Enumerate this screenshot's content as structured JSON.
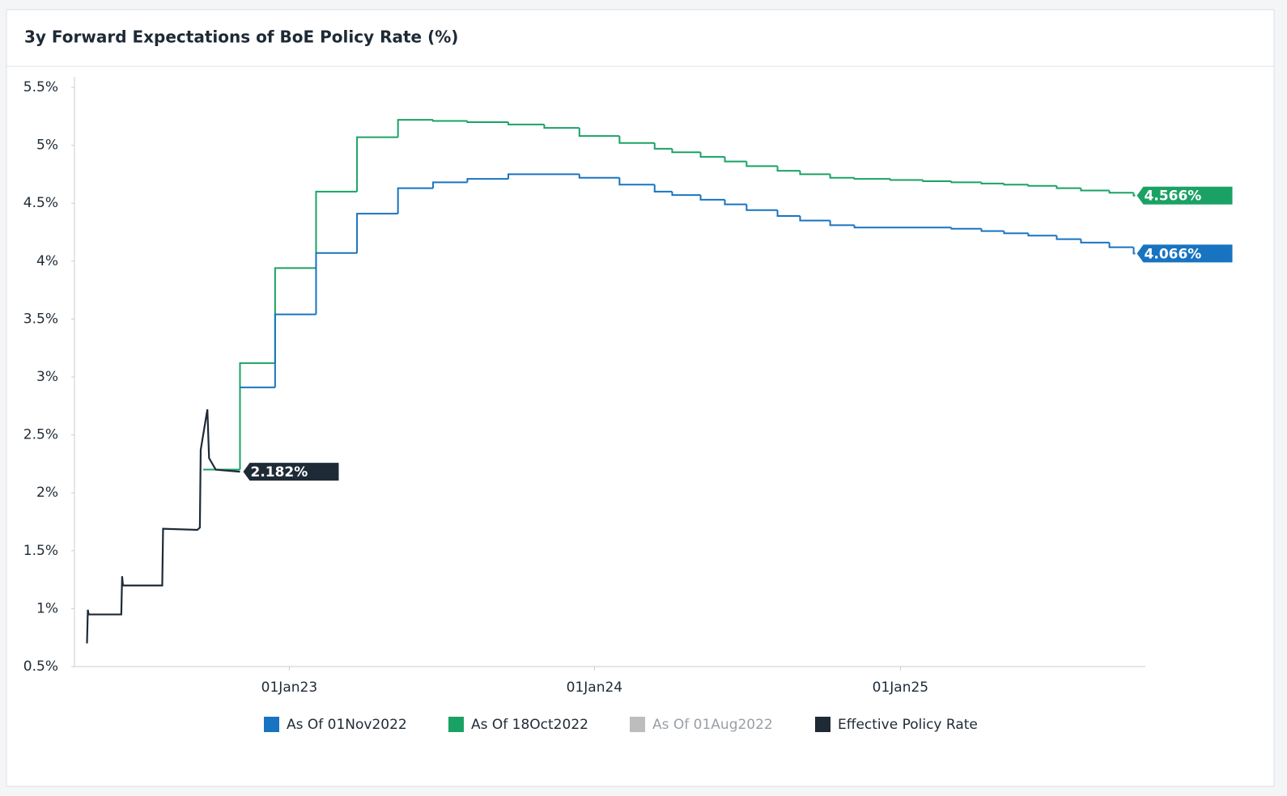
{
  "chart_data": {
    "type": "step-line",
    "title": "3y Forward Expectations of BoE Policy Rate (%)",
    "xlim": [
      "2022-04-19",
      "2025-10-21"
    ],
    "xticks": [
      {
        "value": "2023-01-01",
        "label": "01Jan23"
      },
      {
        "value": "2024-01-01",
        "label": "01Jan24"
      },
      {
        "value": "2025-01-01",
        "label": "01Jan25"
      }
    ],
    "ylim": [
      0.5,
      5.5
    ],
    "yticks": [
      {
        "value": 0.5,
        "label": "0.5%"
      },
      {
        "value": 1,
        "label": "1%"
      },
      {
        "value": 1.5,
        "label": "1.5%"
      },
      {
        "value": 2,
        "label": "2%"
      },
      {
        "value": 2.5,
        "label": "2.5%"
      },
      {
        "value": 3,
        "label": "3%"
      },
      {
        "value": 3.5,
        "label": "3.5%"
      },
      {
        "value": 4,
        "label": "4%"
      },
      {
        "value": 4.5,
        "label": "4.5%"
      },
      {
        "value": 5,
        "label": "5%"
      },
      {
        "value": 5.5,
        "label": "5.5%"
      }
    ],
    "grid": false,
    "series": [
      {
        "name": "As Of 01Nov2022",
        "color": "#1874c1",
        "step": true,
        "last_label": "4.066%",
        "x": [
          "2022-11-03",
          "2022-12-15",
          "2023-02-02",
          "2023-03-23",
          "2023-05-11",
          "2023-06-22",
          "2023-08-02",
          "2023-09-20",
          "2023-12-14",
          "2024-01-31",
          "2024-03-13",
          "2024-04-03",
          "2024-05-07",
          "2024-06-05",
          "2024-07-01",
          "2024-08-07",
          "2024-09-03",
          "2024-10-09",
          "2024-11-07",
          "2025-03-03",
          "2025-04-08",
          "2025-05-05",
          "2025-06-03",
          "2025-07-07",
          "2025-08-05",
          "2025-09-08",
          "2025-10-07"
        ],
        "values": [
          2.91,
          3.54,
          4.07,
          4.41,
          4.63,
          4.68,
          4.71,
          4.75,
          4.72,
          4.66,
          4.6,
          4.57,
          4.53,
          4.49,
          4.44,
          4.39,
          4.35,
          4.31,
          4.29,
          4.28,
          4.26,
          4.24,
          4.22,
          4.19,
          4.16,
          4.12,
          4.066
        ]
      },
      {
        "name": "As Of 18Oct2022",
        "color": "#1aa265",
        "step": true,
        "last_label": "4.566%",
        "x": [
          "2022-09-20",
          "2022-11-03",
          "2022-12-15",
          "2023-02-02",
          "2023-03-23",
          "2023-05-11",
          "2023-06-22",
          "2023-08-02",
          "2023-09-20",
          "2023-11-02",
          "2023-12-14",
          "2024-01-31",
          "2024-03-13",
          "2024-04-03",
          "2024-05-07",
          "2024-06-05",
          "2024-07-01",
          "2024-08-07",
          "2024-09-03",
          "2024-10-09",
          "2024-11-07",
          "2024-12-20",
          "2025-01-28",
          "2025-03-03",
          "2025-04-08",
          "2025-05-05",
          "2025-06-03",
          "2025-07-07",
          "2025-08-05",
          "2025-09-08",
          "2025-10-07"
        ],
        "values": [
          2.2,
          3.12,
          3.94,
          4.6,
          5.07,
          5.22,
          5.21,
          5.2,
          5.18,
          5.15,
          5.08,
          5.02,
          4.97,
          4.94,
          4.9,
          4.86,
          4.82,
          4.78,
          4.75,
          4.72,
          4.71,
          4.7,
          4.69,
          4.68,
          4.67,
          4.66,
          4.65,
          4.63,
          4.61,
          4.59,
          4.566
        ]
      },
      {
        "name": "As Of 01Aug2022",
        "color": "#bdbdbd",
        "hidden": true,
        "x": [],
        "values": []
      },
      {
        "name": "Effective Policy Rate",
        "color": "#1e2a36",
        "step": false,
        "last_label": "2.182%",
        "x": [
          "2022-05-04",
          "2022-05-05",
          "2022-05-06",
          "2022-06-14",
          "2022-06-15",
          "2022-06-16",
          "2022-08-02",
          "2022-08-03",
          "2022-09-13",
          "2022-09-16",
          "2022-09-17",
          "2022-09-25",
          "2022-09-27",
          "2022-10-05",
          "2022-11-03"
        ],
        "values": [
          0.7,
          0.99,
          0.95,
          0.95,
          1.28,
          1.2,
          1.2,
          1.69,
          1.68,
          1.7,
          2.37,
          2.72,
          2.3,
          2.2,
          2.182
        ]
      }
    ]
  }
}
